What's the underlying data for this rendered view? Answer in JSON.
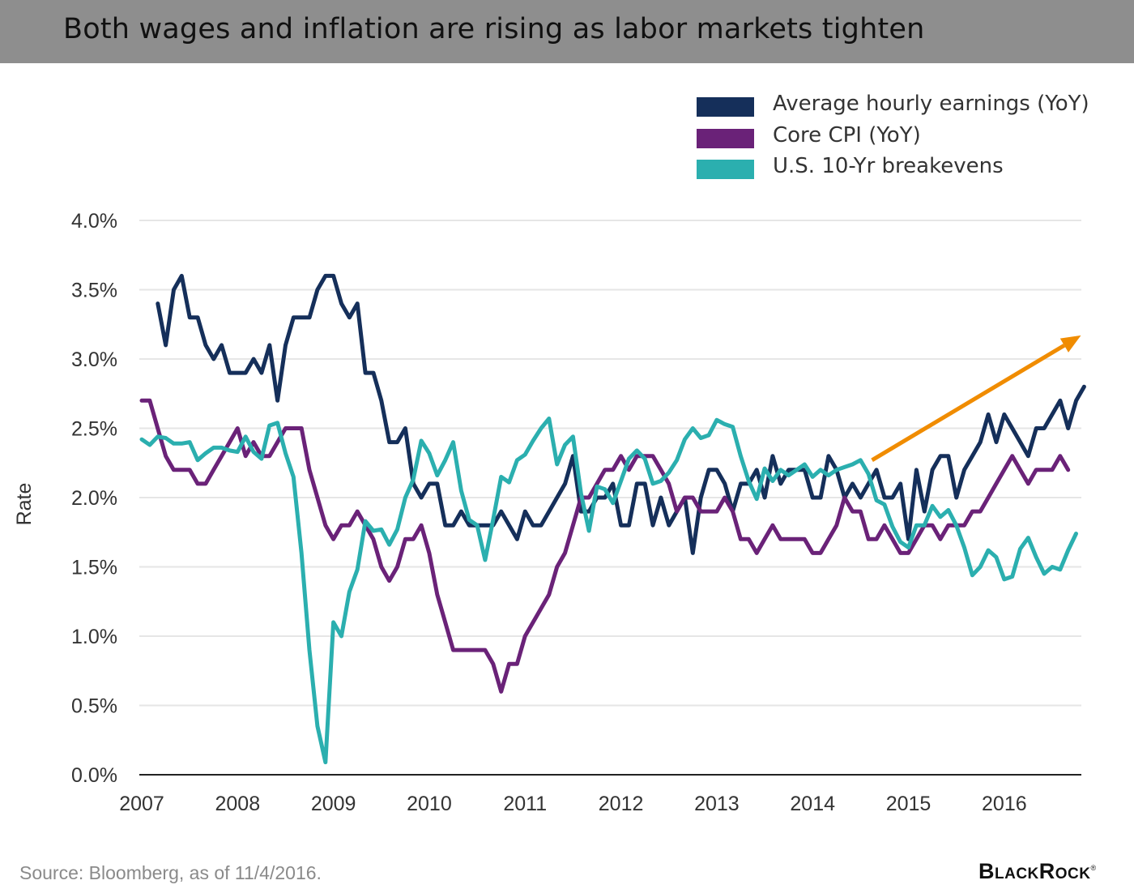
{
  "header": {
    "title": "Both wages and inflation are rising as labor markets tighten"
  },
  "footer": {
    "source": "Source: Bloomberg, as of 11/4/2016.",
    "logo": "BlackRock",
    "logo_mark": "®"
  },
  "colors": {
    "earnings": "#152f5a",
    "cpi": "#6a2278",
    "breakevens": "#2bafaf",
    "arrow": "#f08c00",
    "grid": "#e6e6e6",
    "axis": "#222222",
    "header_bg": "#8e8e8e"
  },
  "chart_data": {
    "type": "line",
    "title": "Both wages and inflation are rising as labor markets tighten",
    "xlabel": "",
    "ylabel": "Rate",
    "xlim": [
      2007,
      2016.8
    ],
    "ylim": [
      0,
      4
    ],
    "grid": true,
    "legend_position": "top-right",
    "x_ticks": [
      2007,
      2008,
      2009,
      2010,
      2011,
      2012,
      2013,
      2014,
      2015,
      2016
    ],
    "x_tick_labels": [
      "2007",
      "2008",
      "2009",
      "2010",
      "2011",
      "2012",
      "2013",
      "2014",
      "2015",
      "2016"
    ],
    "y_ticks": [
      0,
      0.5,
      1.0,
      1.5,
      2.0,
      2.5,
      3.0,
      3.5,
      4.0
    ],
    "y_tick_labels": [
      "0.0%",
      "0.5%",
      "1.0%",
      "1.5%",
      "2.0%",
      "2.5%",
      "3.0%",
      "3.5%",
      "4.0%"
    ],
    "series": [
      {
        "name": "Average hourly earnings (YoY)",
        "color": "#152f5a",
        "x_start": 2007.167,
        "x_step": 0.08333,
        "values": [
          3.4,
          3.1,
          3.5,
          3.6,
          3.3,
          3.3,
          3.1,
          3.0,
          3.1,
          2.9,
          2.9,
          2.9,
          3.0,
          2.9,
          3.1,
          2.7,
          3.1,
          3.3,
          3.3,
          3.3,
          3.5,
          3.6,
          3.6,
          3.4,
          3.3,
          3.4,
          2.9,
          2.9,
          2.7,
          2.4,
          2.4,
          2.5,
          2.1,
          2.0,
          2.1,
          2.1,
          1.8,
          1.8,
          1.9,
          1.8,
          1.8,
          1.8,
          1.8,
          1.9,
          1.8,
          1.7,
          1.9,
          1.8,
          1.8,
          1.9,
          2.0,
          2.1,
          2.3,
          1.9,
          1.9,
          2.0,
          2.0,
          2.1,
          1.8,
          1.8,
          2.1,
          2.1,
          1.8,
          2.0,
          1.8,
          1.9,
          2.0,
          1.6,
          2.0,
          2.2,
          2.2,
          2.1,
          1.9,
          2.1,
          2.1,
          2.2,
          2.0,
          2.3,
          2.1,
          2.2,
          2.2,
          2.2,
          2.0,
          2.0,
          2.3,
          2.2,
          2.0,
          2.1,
          2.0,
          2.1,
          2.2,
          2.0,
          2.0,
          2.1,
          1.7,
          2.2,
          1.9,
          2.2,
          2.3,
          2.3,
          2.0,
          2.2,
          2.3,
          2.4,
          2.6,
          2.4,
          2.6,
          2.5,
          2.4,
          2.3,
          2.5,
          2.5,
          2.6,
          2.7,
          2.5,
          2.7,
          2.8
        ]
      },
      {
        "name": "Core CPI (YoY)",
        "color": "#6a2278",
        "x_start": 2007.0,
        "x_step": 0.08333,
        "values": [
          2.7,
          2.7,
          2.5,
          2.3,
          2.2,
          2.2,
          2.2,
          2.1,
          2.1,
          2.2,
          2.3,
          2.4,
          2.5,
          2.3,
          2.4,
          2.3,
          2.3,
          2.4,
          2.5,
          2.5,
          2.5,
          2.2,
          2.0,
          1.8,
          1.7,
          1.8,
          1.8,
          1.9,
          1.8,
          1.7,
          1.5,
          1.4,
          1.5,
          1.7,
          1.7,
          1.8,
          1.6,
          1.3,
          1.1,
          0.9,
          0.9,
          0.9,
          0.9,
          0.9,
          0.8,
          0.6,
          0.8,
          0.8,
          1.0,
          1.1,
          1.2,
          1.3,
          1.5,
          1.6,
          1.8,
          2.0,
          2.0,
          2.1,
          2.2,
          2.2,
          2.3,
          2.2,
          2.3,
          2.3,
          2.3,
          2.2,
          2.1,
          1.9,
          2.0,
          2.0,
          1.9,
          1.9,
          1.9,
          2.0,
          1.9,
          1.7,
          1.7,
          1.6,
          1.7,
          1.8,
          1.7,
          1.7,
          1.7,
          1.7,
          1.6,
          1.6,
          1.7,
          1.8,
          2.0,
          1.9,
          1.9,
          1.7,
          1.7,
          1.8,
          1.7,
          1.6,
          1.6,
          1.7,
          1.8,
          1.8,
          1.7,
          1.8,
          1.8,
          1.8,
          1.9,
          1.9,
          2.0,
          2.1,
          2.2,
          2.3,
          2.2,
          2.1,
          2.2,
          2.2,
          2.2,
          2.3,
          2.2
        ]
      },
      {
        "name": "U.S. 10-Yr breakevens",
        "color": "#2bafaf",
        "x_start": 2007.0,
        "x_step": 0.08333,
        "values": [
          2.42,
          2.38,
          2.44,
          2.43,
          2.39,
          2.39,
          2.4,
          2.27,
          2.32,
          2.36,
          2.36,
          2.34,
          2.33,
          2.44,
          2.33,
          2.28,
          2.52,
          2.54,
          2.32,
          2.15,
          1.6,
          0.9,
          0.35,
          0.09,
          1.1,
          1.0,
          1.32,
          1.48,
          1.83,
          1.76,
          1.77,
          1.66,
          1.77,
          2.0,
          2.13,
          2.41,
          2.32,
          2.16,
          2.27,
          2.4,
          2.05,
          1.84,
          1.8,
          1.55,
          1.84,
          2.15,
          2.11,
          2.27,
          2.31,
          2.41,
          2.5,
          2.57,
          2.24,
          2.38,
          2.44,
          2.03,
          1.76,
          2.08,
          2.06,
          1.96,
          2.12,
          2.28,
          2.34,
          2.28,
          2.1,
          2.12,
          2.18,
          2.27,
          2.42,
          2.5,
          2.43,
          2.45,
          2.56,
          2.53,
          2.51,
          2.3,
          2.12,
          1.99,
          2.21,
          2.12,
          2.2,
          2.16,
          2.2,
          2.24,
          2.15,
          2.2,
          2.16,
          2.2,
          2.22,
          2.24,
          2.27,
          2.17,
          1.98,
          1.95,
          1.79,
          1.68,
          1.64,
          1.8,
          1.8,
          1.94,
          1.86,
          1.91,
          1.8,
          1.64,
          1.44,
          1.5,
          1.62,
          1.57,
          1.41,
          1.43,
          1.63,
          1.71,
          1.57,
          1.45,
          1.5,
          1.48,
          1.62,
          1.74
        ]
      }
    ],
    "annotations": [
      {
        "type": "arrow",
        "color": "#f08c00",
        "from": [
          2014.62,
          2.27
        ],
        "to": [
          2016.8,
          3.17
        ]
      }
    ]
  }
}
